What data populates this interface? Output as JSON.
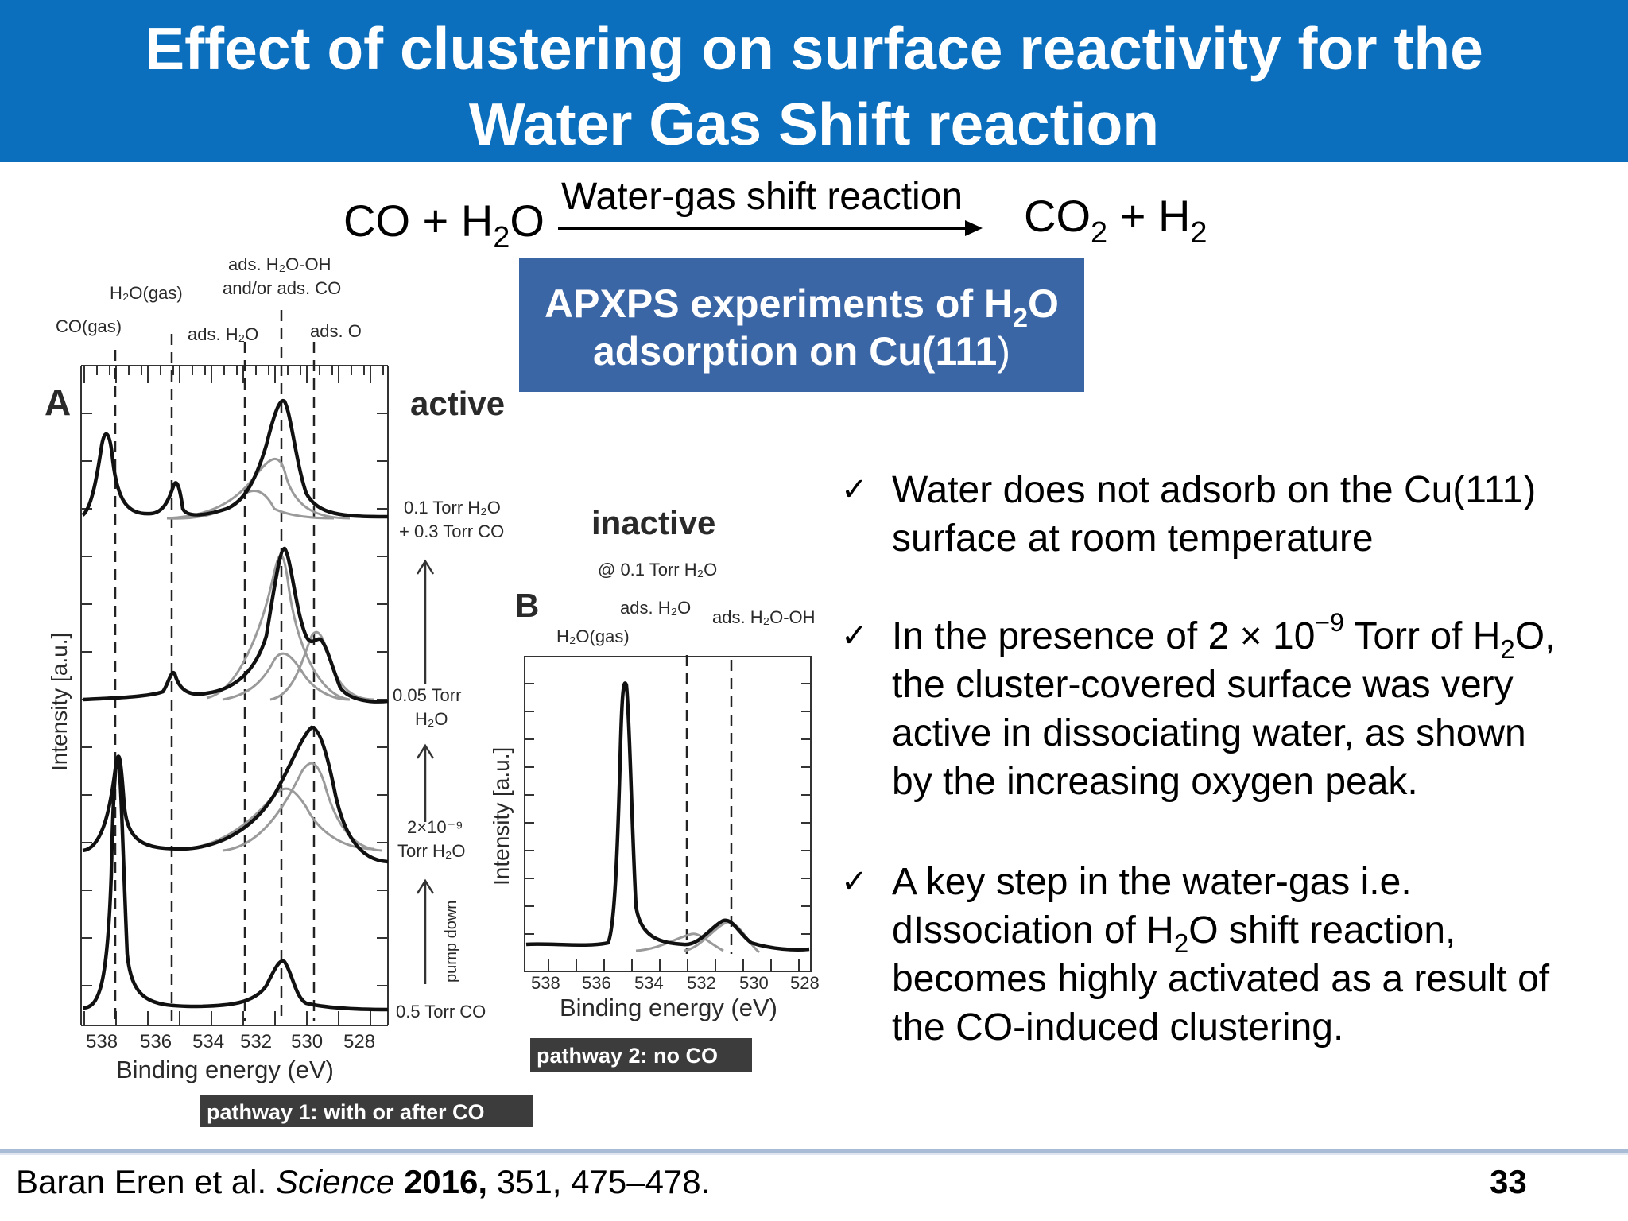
{
  "title": {
    "line1": "Effect of clustering on surface reactivity for the",
    "line2": "Water Gas Shift reaction"
  },
  "reaction": {
    "reactants": {
      "co": "CO + H",
      "h2o_sub": "2",
      "o": "O"
    },
    "arrow_label": "Water-gas shift reaction",
    "products": {
      "co": "CO",
      "co2_sub": "2",
      "plus_h": " + H",
      "h2_sub": "2"
    }
  },
  "apxps_box": {
    "line1_a": "APXPS experiments of H",
    "line1_sub": "2",
    "line1_b": "O",
    "line2_a": "adsorption on Cu(111",
    "line2_b": ")"
  },
  "bullets": [
    {
      "lines": [
        "Water does not adsorb on the Cu(111)",
        "surface at room temperature"
      ]
    },
    {
      "line1": {
        "a": " In the presence of 2 × 10",
        "sup": "−9",
        "b": " Torr of H",
        "sub": "2",
        "c": "O,"
      },
      "lines": [
        "the cluster-covered surface was very",
        "active in dissociating water, as shown",
        "by the increasing oxygen peak."
      ]
    },
    {
      "line1": " A key step in the water-gas i.e.",
      "line2": {
        "a": "dIssociation of H",
        "sub": "2",
        "b": "O shift reaction,"
      },
      "lines": [
        "becomes highly activated as a result of",
        "the CO-induced clustering."
      ]
    }
  ],
  "figure_a": {
    "panel_label": "A",
    "state_label": "active",
    "peak_labels": {
      "co_gas": "CO(gas)",
      "h2o_gas": "H₂O(gas)",
      "ads_h2o_oh": "ads. H₂O-OH",
      "and_or_co": "and/or ads. CO",
      "ads_h2o": "ads. H₂O",
      "ads_o": "ads. O"
    },
    "ylabel": "Intensity [a.u.]",
    "xlabel": "Binding energy (eV)",
    "x_ticks": [
      "538",
      "536",
      "534",
      "532",
      "530",
      "528"
    ],
    "conditions": {
      "c1a": "0.1 Torr H₂O",
      "c1b": "+ 0.3 Torr CO",
      "c2a": "0.05 Torr",
      "c2b": "H₂O",
      "c3a": "2×10⁻⁹",
      "c3b": "Torr H₂O",
      "pump": "pump down",
      "c4": "0.5 Torr CO"
    },
    "pathway": "pathway 1: with or after CO"
  },
  "figure_b": {
    "state_label": "inactive",
    "state_sub": "@ 0.1 Torr H₂O",
    "panel_label": "B",
    "peak_labels": {
      "ads_h2o": "ads. H₂O",
      "ads_h2o_oh": "ads. H₂O-OH",
      "h2o_gas": "H₂O(gas)"
    },
    "ylabel": "Intensity [a.u.]",
    "xlabel": "Binding energy (eV)",
    "x_ticks": [
      "538",
      "536",
      "534",
      "532",
      "530",
      "528"
    ],
    "pathway": "pathway 2: no CO"
  },
  "footer": {
    "author": "Baran Eren et al. ",
    "journal": "Science",
    "year": " 2016,",
    "pages": " 351, 475–478.",
    "page_number": "33"
  },
  "colors": {
    "title_bar": "#0b6fbd",
    "box": "#3b66a6",
    "pathway_label_bg": "#3c3c3c",
    "footer_rule": "#a9bcd6"
  }
}
